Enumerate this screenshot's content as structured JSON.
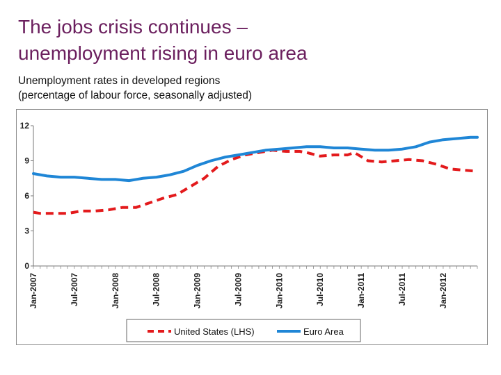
{
  "header": {
    "title_line1": "The jobs crisis continues –",
    "title_line2": "unemployment rising in euro area",
    "subtitle_line1": "Unemployment rates in developed regions",
    "subtitle_line2": "(percentage of labour force, seasonally adjusted)"
  },
  "chart_data": {
    "type": "line",
    "title": "",
    "xlabel": "",
    "ylabel": "",
    "ylim": [
      0,
      12
    ],
    "yticks": [
      "0",
      "3",
      "6",
      "9",
      "12"
    ],
    "xlim": [
      "2007-01",
      "2012-06"
    ],
    "xticks": [
      "Jan-2007",
      "Jul-2007",
      "Jan-2008",
      "Jul-2008",
      "Jan-2009",
      "Jul-2009",
      "Jan-2010",
      "Jul-2010",
      "Jan-2011",
      "Jul-2011",
      "Jan-2012"
    ],
    "grid": false,
    "legend_position": "bottom",
    "series": [
      {
        "name": "United States (LHS)",
        "color": "#e31a1c",
        "style": "dashed",
        "points": [
          [
            "2007-01",
            4.6
          ],
          [
            "2007-02",
            4.5
          ],
          [
            "2007-04",
            4.5
          ],
          [
            "2007-06",
            4.5
          ],
          [
            "2007-08",
            4.7
          ],
          [
            "2007-10",
            4.7
          ],
          [
            "2007-12",
            4.8
          ],
          [
            "2008-02",
            5.0
          ],
          [
            "2008-04",
            5.0
          ],
          [
            "2008-06",
            5.4
          ],
          [
            "2008-08",
            5.8
          ],
          [
            "2008-10",
            6.1
          ],
          [
            "2008-12",
            6.8
          ],
          [
            "2009-02",
            7.5
          ],
          [
            "2009-04",
            8.5
          ],
          [
            "2009-06",
            9.1
          ],
          [
            "2009-08",
            9.5
          ],
          [
            "2009-10",
            9.7
          ],
          [
            "2009-12",
            9.9
          ],
          [
            "2010-02",
            9.8
          ],
          [
            "2010-04",
            9.8
          ],
          [
            "2010-05",
            9.7
          ],
          [
            "2010-07",
            9.4
          ],
          [
            "2010-09",
            9.5
          ],
          [
            "2010-11",
            9.5
          ],
          [
            "2010-12",
            9.7
          ],
          [
            "2011-02",
            9.0
          ],
          [
            "2011-04",
            8.9
          ],
          [
            "2011-06",
            9.0
          ],
          [
            "2011-08",
            9.1
          ],
          [
            "2011-10",
            9.0
          ],
          [
            "2011-12",
            8.7
          ],
          [
            "2012-02",
            8.3
          ],
          [
            "2012-04",
            8.2
          ],
          [
            "2012-06",
            8.1
          ]
        ]
      },
      {
        "name": "Euro Area",
        "color": "#1f86d6",
        "style": "solid",
        "points": [
          [
            "2007-01",
            7.9
          ],
          [
            "2007-03",
            7.7
          ],
          [
            "2007-05",
            7.6
          ],
          [
            "2007-07",
            7.6
          ],
          [
            "2007-09",
            7.5
          ],
          [
            "2007-11",
            7.4
          ],
          [
            "2008-01",
            7.4
          ],
          [
            "2008-03",
            7.3
          ],
          [
            "2008-05",
            7.5
          ],
          [
            "2008-07",
            7.6
          ],
          [
            "2008-09",
            7.8
          ],
          [
            "2008-11",
            8.1
          ],
          [
            "2009-01",
            8.6
          ],
          [
            "2009-03",
            9.0
          ],
          [
            "2009-05",
            9.3
          ],
          [
            "2009-07",
            9.5
          ],
          [
            "2009-09",
            9.7
          ],
          [
            "2009-11",
            9.9
          ],
          [
            "2010-01",
            10.0
          ],
          [
            "2010-03",
            10.1
          ],
          [
            "2010-05",
            10.2
          ],
          [
            "2010-07",
            10.2
          ],
          [
            "2010-09",
            10.1
          ],
          [
            "2010-11",
            10.1
          ],
          [
            "2011-01",
            10.0
          ],
          [
            "2011-03",
            9.9
          ],
          [
            "2011-05",
            9.9
          ],
          [
            "2011-07",
            10.0
          ],
          [
            "2011-09",
            10.2
          ],
          [
            "2011-11",
            10.6
          ],
          [
            "2012-01",
            10.8
          ],
          [
            "2012-03",
            10.9
          ],
          [
            "2012-05",
            11.0
          ],
          [
            "2012-06",
            11.0
          ]
        ]
      }
    ]
  }
}
